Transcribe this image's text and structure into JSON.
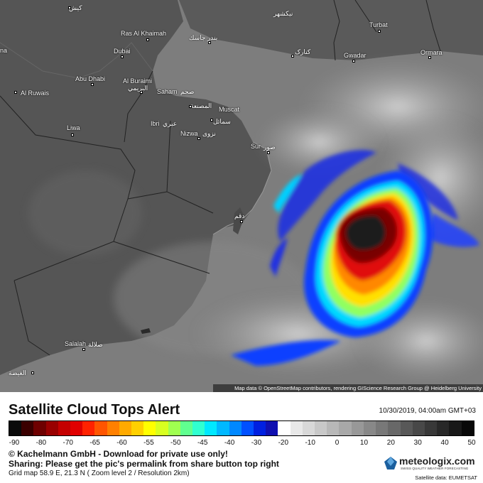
{
  "map": {
    "places": [
      {
        "name": "Ras Al Khaimah",
        "ar": ""
      },
      {
        "name": "Dubai",
        "ar": ""
      },
      {
        "name": "Abu Dhabi",
        "ar": ""
      },
      {
        "name": "Al Buraimi",
        "ar": "البريمي"
      },
      {
        "name": "Al Ruwais",
        "ar": ""
      },
      {
        "name": "Saham",
        "ar": "صحم"
      },
      {
        "name": "",
        "ar": "المصنعة"
      },
      {
        "name": "Muscat",
        "ar": ""
      },
      {
        "name": "",
        "ar": "سمائل"
      },
      {
        "name": "Ibri",
        "ar": "عبري"
      },
      {
        "name": "Nizwa",
        "ar": "نزوى"
      },
      {
        "name": "Liwa",
        "ar": ""
      },
      {
        "name": "Sur",
        "ar": "صور"
      },
      {
        "name": "Turbat",
        "ar": ""
      },
      {
        "name": "Gwadar",
        "ar": ""
      },
      {
        "name": "Ormara",
        "ar": ""
      },
      {
        "name": "",
        "ar": "جاسك"
      },
      {
        "name": "",
        "ar": "بندر جاسك"
      },
      {
        "name": "",
        "ar": "کیش"
      },
      {
        "name": "",
        "ar": "کنارک"
      },
      {
        "name": "",
        "ar": "نیکشهر"
      },
      {
        "name": "Salalah",
        "ar": "صلالة"
      },
      {
        "name": "",
        "ar": "الغيضة"
      },
      {
        "name": "",
        "ar": "دقم"
      },
      {
        "name": "na",
        "ar": ""
      }
    ],
    "attribution": "Map data © OpenStreetMap contributors, rendering GIScience Research Group @ Heidelberg University"
  },
  "footer": {
    "title": "Satellite Cloud Tops Alert",
    "datetime": "10/30/2019, 04:00am GMT+03",
    "scale_ticks": [
      "-90",
      "-80",
      "-70",
      "-65",
      "-60",
      "-55",
      "-50",
      "-45",
      "-40",
      "-30",
      "-20",
      "-10",
      "0",
      "10",
      "20",
      "30",
      "40",
      "50"
    ],
    "scale_colors": [
      "#0a0a0a",
      "#3a0000",
      "#6e0000",
      "#990000",
      "#c40000",
      "#e00000",
      "#ff2200",
      "#ff5500",
      "#ff8000",
      "#ffaa00",
      "#ffd000",
      "#ffff00",
      "#d8ff20",
      "#a0ff50",
      "#60ff90",
      "#30ffd0",
      "#00e8ff",
      "#00b8ff",
      "#0088ff",
      "#0050ff",
      "#0020e0",
      "#1010b0",
      "#ffffff",
      "#e8e8e8",
      "#d8d8d8",
      "#c8c8c8",
      "#b8b8b8",
      "#a8a8a8",
      "#989898",
      "#888888",
      "#787878",
      "#686868",
      "#585858",
      "#484848",
      "#383838",
      "#282828",
      "#181818",
      "#080808"
    ],
    "line1": "© Kachelmann GmbH - Download for private use only!",
    "line2": "Sharing: Please get the pic's permalink from share button top right",
    "line3": "Grid map 58.9 E, 21.3 N ( Zoom level 2 / Resolution 2km)",
    "brand_name": "meteologix.com",
    "brand_tag": "SWISS QUALITY WEATHER FORECASTING",
    "sat_data": "Satellite data: EUMETSAT"
  }
}
